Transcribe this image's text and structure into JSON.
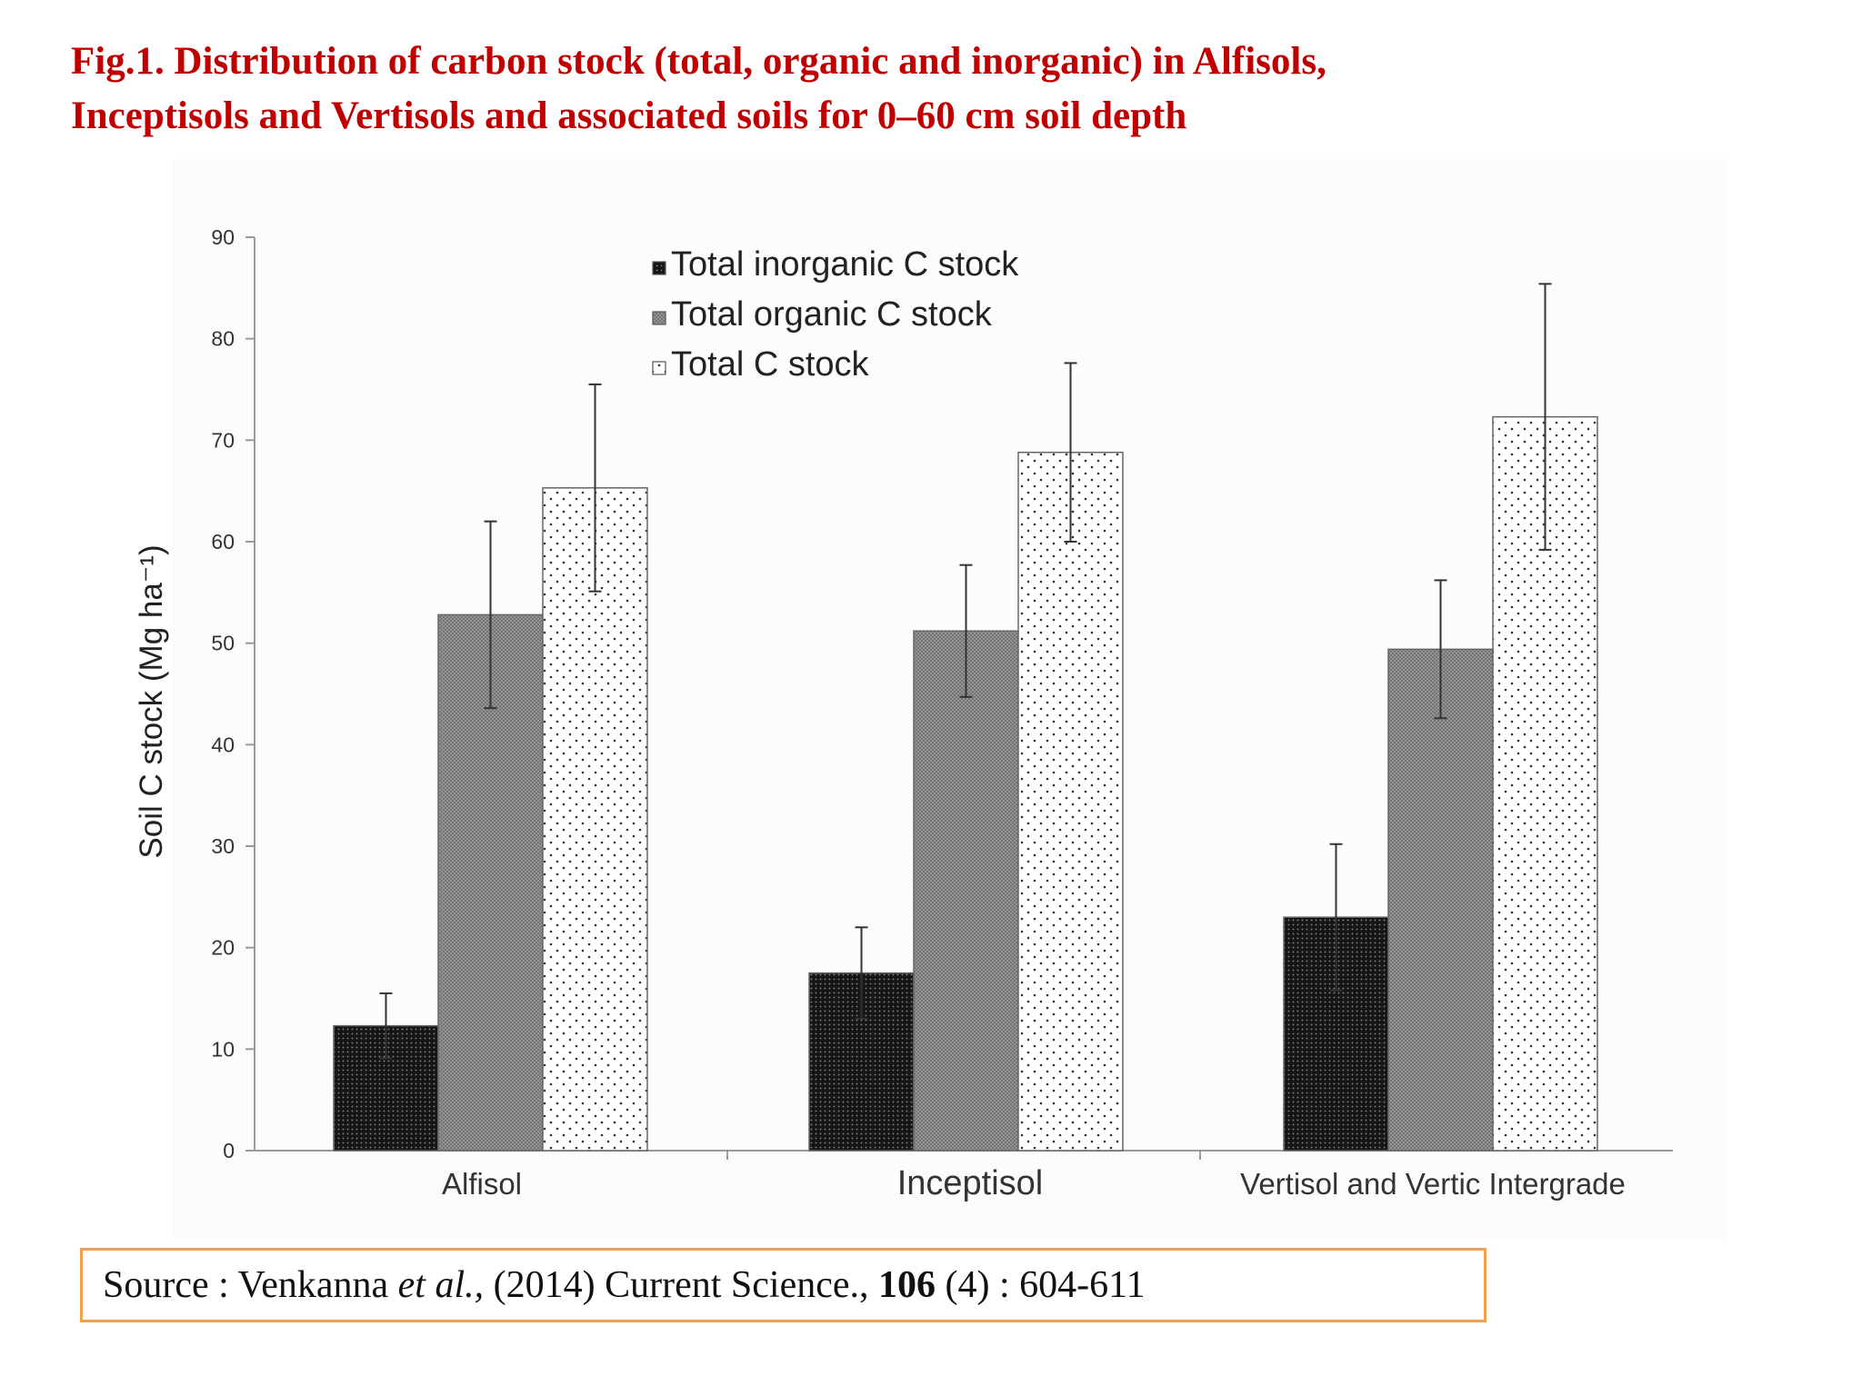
{
  "title": {
    "line1": "Fig.1. Distribution of carbon stock (total, organic and inorganic) in Alfisols,",
    "line2": "Inceptisols and Vertisols and associated soils for 0–60 cm soil depth"
  },
  "source": {
    "prefix": "Source : Venkanna ",
    "etal": "et al.,",
    "middle": " (2014) Current  Science., ",
    "volume": "106",
    "suffix": "  (4) : 604-611"
  },
  "colors": {
    "title": "#c00000",
    "source_border": "#f0a050",
    "inorganic": "#1a1a1a",
    "organic": "#7a7a7a",
    "total": "#ffffff"
  },
  "chart_data": {
    "type": "bar",
    "title": "",
    "xlabel": "",
    "ylabel": "Soil C stock (Mg ha⁻¹)",
    "ylim": [
      0,
      90
    ],
    "yticks": [
      0,
      10,
      20,
      30,
      40,
      50,
      60,
      70,
      80,
      90
    ],
    "grid": false,
    "legend_position": "top-center",
    "categories": [
      "Alfisol",
      "Inceptisol",
      "Vertisol and Vertic Intergrade"
    ],
    "series": [
      {
        "name": "Total inorganic C stock",
        "pattern": "dark-dotted",
        "values": [
          12.3,
          17.5,
          23.0
        ],
        "errors": [
          3.2,
          4.5,
          7.2
        ]
      },
      {
        "name": "Total organic C stock",
        "pattern": "gray-crosshatch",
        "values": [
          52.8,
          51.2,
          49.4
        ],
        "errors": [
          9.2,
          6.5,
          6.8
        ]
      },
      {
        "name": "Total C stock",
        "pattern": "white-dotted",
        "values": [
          65.3,
          68.8,
          72.3
        ],
        "errors": [
          10.2,
          8.8,
          13.1
        ]
      }
    ]
  }
}
